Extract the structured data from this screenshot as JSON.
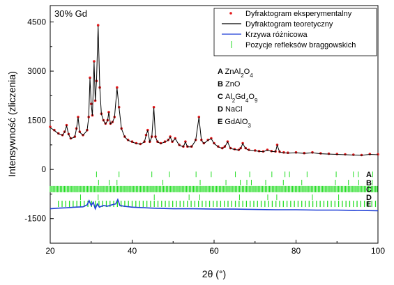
{
  "chart_data": {
    "type": "line",
    "panel_label": "30% Gd",
    "xlabel": "2θ (°)",
    "ylabel": "Intensywność (zliczenia)",
    "xlim": [
      20,
      100
    ],
    "ylim": [
      -2250,
      5000
    ],
    "x_ticks": [
      20,
      40,
      60,
      80,
      100
    ],
    "y_ticks": [
      -1500,
      0,
      1500,
      3000,
      4500
    ],
    "grid": false,
    "legend_position": "top-right",
    "colors": {
      "experimental": "#e41a1c",
      "theoretical": "#000000",
      "difference": "#1f3fd6",
      "bragg": "#22dd22"
    },
    "series": [
      {
        "name": "Dyfraktogram eksperymentalny",
        "style": "dots",
        "x": [
          20,
          21,
          22,
          23,
          23.5,
          24,
          24.5,
          25,
          26,
          26.4,
          26.8,
          27.2,
          28,
          29,
          29.4,
          29.7,
          30,
          30.3,
          30.7,
          31,
          31.3,
          31.7,
          32.1,
          32.5,
          33,
          33.5,
          34,
          34.3,
          34.7,
          35.2,
          35.7,
          36.3,
          36.8,
          37.4,
          38.2,
          39,
          40,
          41,
          42,
          43,
          43.4,
          43.8,
          44.3,
          44.8,
          45.3,
          45.7,
          46.2,
          47,
          48,
          48.8,
          49.3,
          49.8,
          50.5,
          51.5,
          52.5,
          53,
          53.5,
          54.5,
          55.5,
          56.3,
          56.9,
          57.5,
          58.5,
          59.3,
          60,
          61,
          62,
          62.6,
          63.3,
          64,
          65,
          66,
          66.5,
          67,
          67.7,
          68.5,
          70,
          71,
          72,
          73,
          74,
          75,
          75.4,
          76,
          77,
          78,
          80,
          82,
          84,
          86,
          88,
          90,
          92,
          94,
          96,
          98,
          100
        ],
        "y": [
          1300,
          1200,
          1100,
          1050,
          1150,
          1350,
          1080,
          950,
          1000,
          1250,
          1600,
          1150,
          1050,
          1200,
          1600,
          2800,
          2000,
          1650,
          3300,
          2100,
          2700,
          4400,
          2500,
          1700,
          1500,
          1400,
          1500,
          1750,
          1400,
          1450,
          1600,
          2500,
          1900,
          1250,
          1000,
          900,
          850,
          800,
          780,
          850,
          1050,
          1200,
          850,
          1000,
          1900,
          1000,
          850,
          800,
          850,
          900,
          1000,
          850,
          950,
          750,
          700,
          850,
          700,
          700,
          900,
          1600,
          900,
          800,
          900,
          950,
          800,
          700,
          650,
          700,
          850,
          650,
          620,
          600,
          650,
          800,
          650,
          600,
          580,
          560,
          550,
          600,
          560,
          550,
          750,
          540,
          520,
          510,
          520,
          500,
          520,
          490,
          480,
          470,
          460,
          450,
          440,
          470,
          460
        ]
      },
      {
        "name": "Dyfraktogram teoretyczny",
        "style": "line",
        "x": [
          20,
          21,
          22,
          23,
          23.5,
          24,
          24.5,
          25,
          26,
          26.4,
          26.8,
          27.2,
          28,
          29,
          29.4,
          29.7,
          30,
          30.3,
          30.7,
          31,
          31.3,
          31.7,
          32.1,
          32.5,
          33,
          33.5,
          34,
          34.3,
          34.7,
          35.2,
          35.7,
          36.3,
          36.8,
          37.4,
          38.2,
          39,
          40,
          41,
          42,
          43,
          43.4,
          43.8,
          44.3,
          44.8,
          45.3,
          45.7,
          46.2,
          47,
          48,
          48.8,
          49.3,
          49.8,
          50.5,
          51.5,
          52.5,
          53,
          53.5,
          54.5,
          55.5,
          56.3,
          56.9,
          57.5,
          58.5,
          59.3,
          60,
          61,
          62,
          62.6,
          63.3,
          64,
          65,
          66,
          66.5,
          67,
          67.7,
          68.5,
          70,
          71,
          72,
          73,
          74,
          75,
          75.4,
          76,
          77,
          78,
          80,
          82,
          84,
          86,
          88,
          90,
          92,
          94,
          96,
          98,
          100
        ],
        "y": [
          1280,
          1190,
          1090,
          1040,
          1140,
          1330,
          1070,
          940,
          990,
          1240,
          1590,
          1140,
          1040,
          1190,
          1590,
          2780,
          1990,
          1640,
          3280,
          2090,
          2690,
          4380,
          2490,
          1690,
          1490,
          1390,
          1490,
          1740,
          1390,
          1440,
          1590,
          2480,
          1890,
          1240,
          990,
          890,
          840,
          790,
          770,
          840,
          1040,
          1190,
          840,
          990,
          1880,
          990,
          840,
          790,
          840,
          890,
          990,
          840,
          940,
          740,
          690,
          840,
          690,
          690,
          890,
          1590,
          890,
          790,
          890,
          940,
          790,
          690,
          640,
          690,
          840,
          640,
          610,
          590,
          640,
          790,
          640,
          590,
          570,
          550,
          540,
          590,
          550,
          540,
          740,
          530,
          510,
          500,
          510,
          490,
          510,
          480,
          470,
          460,
          450,
          440,
          430,
          460,
          450
        ]
      },
      {
        "name": "Krzywa różnicowa",
        "style": "line",
        "x": [
          20,
          22,
          24,
          26,
          28,
          29,
          29.5,
          30,
          30.5,
          31,
          31.5,
          32,
          33,
          34,
          35,
          36,
          36.5,
          37,
          38,
          40,
          45,
          50,
          55,
          60,
          65,
          70,
          75,
          80,
          85,
          90,
          95,
          100
        ],
        "y": [
          -1200,
          -1180,
          -1170,
          -1150,
          -1140,
          -1080,
          -950,
          -1100,
          -1000,
          -1200,
          -1050,
          -1150,
          -1100,
          -1120,
          -1080,
          -1050,
          -920,
          -1100,
          -1120,
          -1150,
          -1180,
          -1200,
          -1200,
          -1210,
          -1210,
          -1220,
          -1230,
          -1230,
          -1240,
          -1240,
          -1250,
          -1260
        ]
      }
    ],
    "bragg_legend": "Pozycje refleksów braggowskich",
    "bragg_rows": [
      {
        "label": "A",
        "y": -150,
        "positions": [
          31.3,
          36.8,
          44.8,
          49.1,
          55.6,
          59.3,
          65.2,
          68.7,
          74.1,
          77.3,
          78.4,
          82.7,
          89.8,
          94.0,
          95.2,
          98.7
        ]
      },
      {
        "label": "B",
        "y": -400,
        "positions": [
          31.8,
          34.4,
          36.3,
          47.5,
          56.6,
          62.9,
          66.4,
          68.0,
          69.1,
          72.6,
          76.9,
          81.4,
          89.6,
          92.8,
          95.3,
          98.6
        ]
      },
      {
        "label": "C",
        "y": -600,
        "dense": true,
        "start": 20,
        "end": 100,
        "step": 0.35
      },
      {
        "label": "D",
        "y": -850,
        "positions": [
          27.4,
          31.7,
          45.4,
          53.9,
          56.5,
          66.2,
          73.1,
          75.3,
          84.0,
          90.4,
          101
        ]
      },
      {
        "label": "E",
        "y": -1050,
        "dense": true,
        "start": 22,
        "end": 100,
        "step": 0.9
      }
    ],
    "phase_list": [
      {
        "letter": "A",
        "formula": "ZnAl",
        "sub1": "2",
        "mid": "O",
        "sub2": "4",
        "tail": "",
        "sub3": ""
      },
      {
        "letter": "B",
        "formula": "ZnO",
        "sub1": "",
        "mid": "",
        "sub2": "",
        "tail": "",
        "sub3": ""
      },
      {
        "letter": "C",
        "formula": "Al",
        "sub1": "2",
        "mid": "Gd",
        "sub2": "4",
        "tail": "O",
        "sub3": "9"
      },
      {
        "letter": "D",
        "formula": "NaCl",
        "sub1": "",
        "mid": "",
        "sub2": "",
        "tail": "",
        "sub3": ""
      },
      {
        "letter": "E",
        "formula": "GdAlO",
        "sub1": "3",
        "mid": "",
        "sub2": "",
        "tail": "",
        "sub3": ""
      }
    ]
  }
}
